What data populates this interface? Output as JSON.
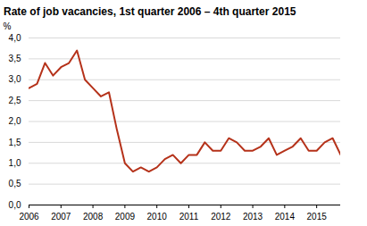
{
  "chart_data": {
    "type": "line",
    "title": "Rate of job vacancies, 1st quarter 2006 – 4th quarter 2015",
    "y_label": "%",
    "categories": [
      "2006",
      null,
      null,
      null,
      "2007",
      null,
      null,
      null,
      "2008",
      null,
      null,
      null,
      "2009",
      null,
      null,
      null,
      "2010",
      null,
      null,
      null,
      "2011",
      null,
      null,
      null,
      "2012",
      null,
      null,
      null,
      "2013",
      null,
      null,
      null,
      "2014",
      null,
      null,
      null,
      "2015",
      null,
      null,
      null
    ],
    "values": [
      2.8,
      2.9,
      3.4,
      3.1,
      3.3,
      3.4,
      3.7,
      3.0,
      2.8,
      2.6,
      2.7,
      1.8,
      1.0,
      0.8,
      0.9,
      0.8,
      0.9,
      1.1,
      1.2,
      1.0,
      1.2,
      1.2,
      1.5,
      1.3,
      1.3,
      1.6,
      1.5,
      1.3,
      1.3,
      1.4,
      1.6,
      1.2,
      1.3,
      1.4,
      1.6,
      1.3,
      1.3,
      1.5,
      1.6,
      1.2
    ],
    "color": "#b5321a",
    "ylim": [
      0,
      4
    ],
    "yticks": [
      {
        "value": 0,
        "label": "0,0"
      },
      {
        "value": 0.5,
        "label": "0,5"
      },
      {
        "value": 1,
        "label": "1,0"
      },
      {
        "value": 1.5,
        "label": "1,5"
      },
      {
        "value": 2,
        "label": "2,0"
      },
      {
        "value": 2.5,
        "label": "2,5"
      },
      {
        "value": 3,
        "label": "3,0"
      },
      {
        "value": 3.5,
        "label": "3,5"
      },
      {
        "value": 4,
        "label": "4,0"
      }
    ],
    "grid": true
  }
}
